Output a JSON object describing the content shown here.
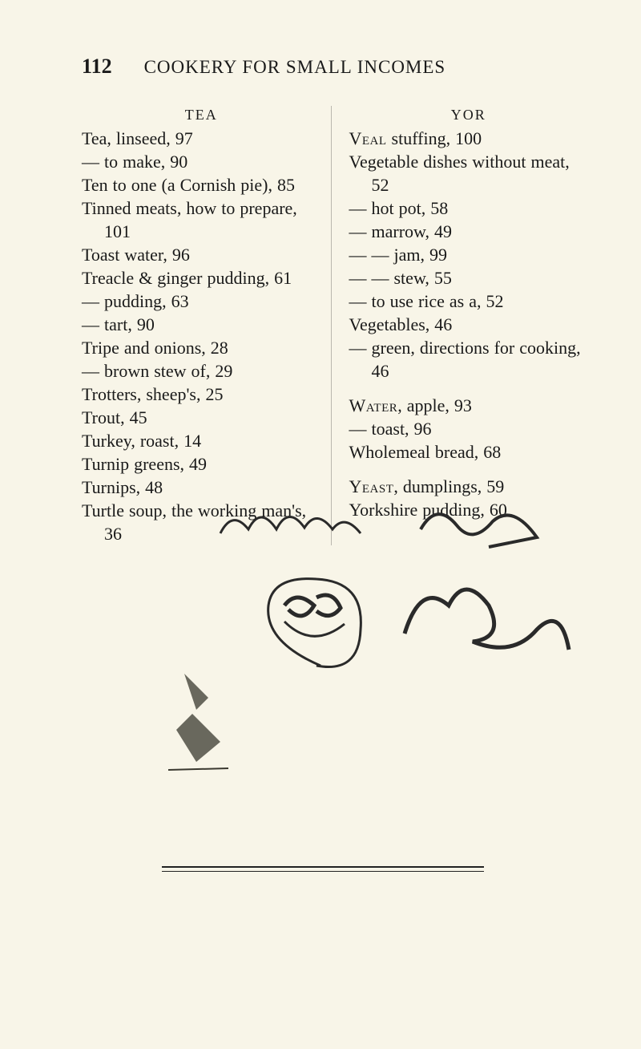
{
  "page_number": "112",
  "running_title": "COOKERY FOR SMALL INCOMES",
  "left": {
    "head": "TEA",
    "entries": [
      "Tea, linseed, 97",
      "— to make, 90",
      "Ten to one (a Cornish pie), 85",
      "Tinned meats, how to prepare, 101",
      "Toast water, 96",
      "Treacle & ginger pudding, 61",
      "— pudding, 63",
      "— tart, 90",
      "Tripe and onions, 28",
      "— brown stew of, 29",
      "Trotters, sheep's, 25",
      "Trout, 45",
      "Turkey, roast, 14",
      "Turnip greens, 49",
      "Turnips, 48",
      "Turtle soup, the working man's, 36"
    ]
  },
  "right": {
    "head": "YOR",
    "groups": [
      {
        "lead_sc": "Veal",
        "lead_rest": " stuffing, 100",
        "entries": [
          "Vegetable dishes without meat, 52",
          "— hot pot, 58",
          "— marrow, 49",
          "— — jam, 99",
          "— — stew, 55",
          "— to use rice as a, 52",
          "Vegetables, 46",
          "— green, directions for cooking, 46"
        ]
      },
      {
        "lead_sc": "Water",
        "lead_rest": ", apple, 93",
        "entries": [
          "— toast, 96",
          "Wholemeal bread, 68"
        ]
      },
      {
        "lead_sc": "Yeast",
        "lead_rest": ", dumplings, 59",
        "entries": [
          "Yorkshire pudding, 60"
        ]
      }
    ]
  }
}
